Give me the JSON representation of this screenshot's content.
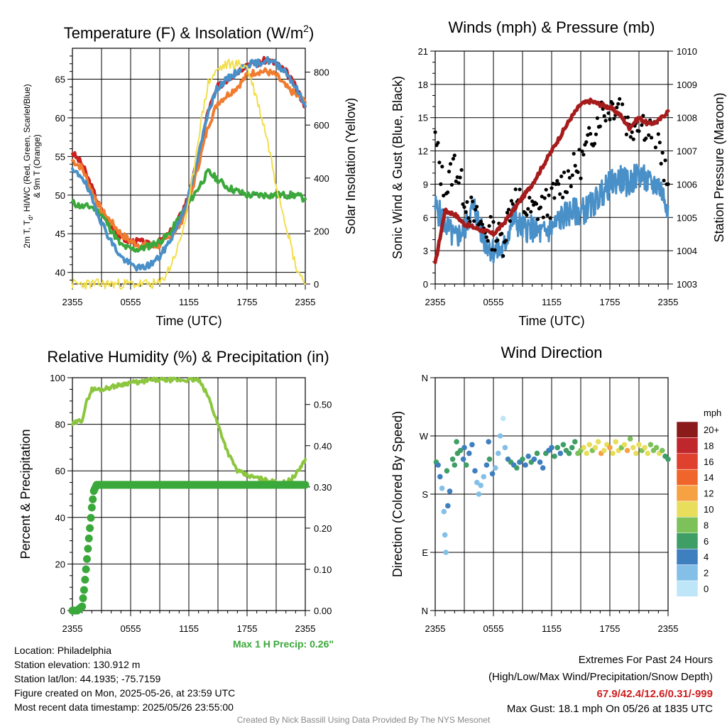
{
  "colors": {
    "red": "#cc1f1f",
    "orange": "#f07c30",
    "green": "#3aa83a",
    "blue": "#4a90c8",
    "yellow": "#f2de4a",
    "black": "#000000",
    "maroon": "#a61c1c",
    "lightgreen": "#8cc63f",
    "precip": "#3aa83a",
    "extremes": "#cc1f1f",
    "credit": "#888888"
  },
  "chart_data": [
    {
      "type": "line",
      "title": "Temperature (F) & Insolation (W/m²)",
      "title_main": "Temperature (F) & Insolation (W/m",
      "title_sup": "2",
      "title_end": ")",
      "xlabel": "Time (UTC)",
      "ylabel_line1": "2m T, T",
      "ylabel_sub": "d",
      "ylabel_line1_end": ", HI/WC (Red, Green, Scarlet/Blue)",
      "ylabel_line2": "& 9m T (Orange)",
      "y2label": "Solar Insolation (Yellow)",
      "xticks": [
        "2355",
        "0555",
        "1155",
        "1755",
        "2355"
      ],
      "xlim": [
        0,
        24
      ],
      "ylim": [
        38.5,
        69
      ],
      "yticks": [
        "40",
        "45",
        "50",
        "55",
        "60",
        "65"
      ],
      "y2lim": [
        0,
        890
      ],
      "y2ticks": [
        "0",
        "200",
        "400",
        "600",
        "800"
      ],
      "series": [
        {
          "name": "2m T",
          "color": "red",
          "x": [
            0,
            1,
            2,
            3,
            4,
            5,
            6,
            7,
            8,
            9,
            10,
            11,
            12,
            13,
            14,
            15,
            16,
            17,
            18,
            19,
            20,
            21,
            22,
            23,
            24
          ],
          "values": [
            55.5,
            54,
            51,
            48,
            46,
            44.5,
            44,
            44,
            43.5,
            44,
            45,
            47,
            50,
            55,
            61,
            64,
            65,
            66,
            67,
            67,
            67.5,
            67,
            66,
            64,
            61.5
          ]
        },
        {
          "name": "9m T",
          "color": "orange",
          "x": [
            0,
            1,
            2,
            3,
            4,
            5,
            6,
            7,
            8,
            9,
            10,
            11,
            12,
            13,
            14,
            15,
            16,
            17,
            18,
            19,
            20,
            21,
            22,
            23,
            24
          ],
          "values": [
            54.5,
            53.5,
            50.5,
            48,
            46.5,
            45,
            44,
            43.5,
            43.5,
            43.5,
            44.5,
            46,
            49,
            54,
            59,
            62,
            63,
            64,
            65.5,
            66,
            66,
            65.5,
            64,
            63,
            62
          ]
        },
        {
          "name": "Td",
          "color": "green",
          "x": [
            0,
            1,
            2,
            3,
            4,
            5,
            6,
            7,
            8,
            9,
            10,
            11,
            12,
            13,
            14,
            15,
            16,
            17,
            18,
            19,
            20,
            21,
            22,
            23,
            24
          ],
          "values": [
            49,
            48.5,
            48.5,
            47.5,
            45.5,
            43.5,
            43,
            43,
            43.5,
            44,
            45,
            47,
            49,
            51,
            53,
            52,
            51,
            50.5,
            50,
            50,
            50,
            50,
            50,
            50,
            49.5
          ]
        },
        {
          "name": "HI/WC",
          "color": "blue",
          "x": [
            0,
            1,
            2,
            3,
            4,
            5,
            6,
            7,
            8,
            9,
            10,
            11,
            12,
            13,
            14,
            15,
            16,
            17,
            18,
            19,
            20,
            21,
            22,
            23,
            24
          ],
          "values": [
            53,
            52.5,
            49.5,
            46.5,
            44,
            42,
            41,
            40.5,
            41,
            42,
            44,
            46.5,
            50,
            55,
            61,
            64,
            65,
            66,
            67,
            67,
            67.5,
            67,
            66,
            64,
            61.5
          ]
        },
        {
          "name": "Solar Insolation",
          "color": "yellow",
          "axis": "y2",
          "x": [
            0,
            0.5,
            1,
            2,
            3,
            4,
            5,
            6,
            7,
            8,
            9,
            10,
            11,
            12,
            13,
            14,
            15,
            16,
            17,
            18,
            19,
            20,
            21,
            22,
            23,
            24
          ],
          "values": [
            0,
            0,
            0,
            0,
            0,
            0,
            0,
            0,
            0,
            0,
            0,
            60,
            150,
            300,
            560,
            760,
            810,
            830,
            830,
            820,
            700,
            560,
            380,
            230,
            70,
            0
          ]
        }
      ]
    },
    {
      "type": "line",
      "title": "Winds (mph) & Pressure (mb)",
      "xlabel": "Time (UTC)",
      "ylabel": "Sonic Wind & Gust (Blue, Black)",
      "y2label": "Station Pressure (Maroon)",
      "xticks": [
        "2355",
        "0555",
        "1155",
        "1755",
        "2355"
      ],
      "xlim": [
        0,
        24
      ],
      "ylim": [
        0,
        21
      ],
      "yticks": [
        "0",
        "3",
        "6",
        "9",
        "12",
        "15",
        "18",
        "21"
      ],
      "y2lim": [
        1003,
        1010
      ],
      "y2ticks": [
        "1003",
        "1004",
        "1005",
        "1006",
        "1007",
        "1008",
        "1009",
        "1010"
      ],
      "series": [
        {
          "name": "Sonic Wind",
          "color": "blue",
          "x": [
            0,
            1,
            2,
            3,
            4,
            5,
            6,
            7,
            8,
            9,
            10,
            11,
            12,
            13,
            14,
            15,
            16,
            17,
            18,
            19,
            20,
            21,
            22,
            23,
            24
          ],
          "values": [
            7,
            5.5,
            4,
            5,
            7,
            4,
            3,
            3,
            6,
            5,
            5,
            4.5,
            5,
            6,
            6.5,
            6.5,
            7,
            8,
            9,
            9.5,
            9,
            10,
            9,
            9,
            7
          ]
        },
        {
          "name": "Gust",
          "color": "black",
          "x": [
            0,
            1,
            2,
            3,
            4,
            5,
            6,
            7,
            8,
            9,
            10,
            11,
            12,
            13,
            14,
            15,
            16,
            17,
            18,
            19,
            20,
            21,
            22,
            23,
            24
          ],
          "values": [
            13,
            8,
            11,
            8,
            6,
            5,
            4.5,
            4,
            8,
            7,
            6.5,
            7,
            7.5,
            9,
            10,
            11,
            13,
            15.5,
            16,
            16.5,
            14,
            15,
            14,
            13,
            9
          ]
        },
        {
          "name": "Station Pressure",
          "color": "maroon",
          "axis": "y2",
          "x": [
            0,
            1,
            2,
            3,
            4,
            5,
            6,
            7,
            8,
            9,
            10,
            11,
            12,
            13,
            14,
            15,
            16,
            17,
            18,
            19,
            20,
            21,
            22,
            23,
            24
          ],
          "values": [
            1003.6,
            1005.2,
            1005.1,
            1004.8,
            1004.7,
            1004.6,
            1004.5,
            1004.8,
            1005.2,
            1005.6,
            1006.0,
            1006.5,
            1007.0,
            1007.5,
            1008.0,
            1008.4,
            1008.5,
            1008.4,
            1008.3,
            1008.1,
            1007.7,
            1008.0,
            1007.8,
            1007.9,
            1008.2
          ]
        }
      ]
    },
    {
      "type": "line",
      "title": "Relative Humidity (%) & Precipitation (in)",
      "ylabel": "Percent & Precipitation",
      "xticks": [
        "2355",
        "0555",
        "1155",
        "1755",
        "2355"
      ],
      "xlim": [
        0,
        24
      ],
      "ylim": [
        0,
        100
      ],
      "yticks": [
        "0",
        "20",
        "40",
        "60",
        "80",
        "100"
      ],
      "y2lim": [
        0,
        0.565
      ],
      "y2ticks": [
        "0.00",
        "0.10",
        "0.20",
        "0.30",
        "0.40",
        "0.50"
      ],
      "annotation": "Max 1 H Precip: 0.26\"",
      "series": [
        {
          "name": "Relative Humidity",
          "color": "lightgreen",
          "x": [
            0,
            1,
            1.5,
            2,
            3,
            4,
            5,
            6,
            7,
            8,
            9,
            10,
            11,
            12,
            13,
            14,
            15,
            16,
            17,
            18,
            19,
            20,
            21,
            22,
            23,
            24
          ],
          "values": [
            80,
            82,
            90,
            95,
            95,
            96,
            97,
            98,
            98,
            99,
            99,
            99,
            99,
            99,
            99,
            92,
            80,
            68,
            60,
            58,
            57,
            56,
            55,
            55,
            58,
            65
          ]
        },
        {
          "name": "Precipitation",
          "color": "precip",
          "axis": "y2",
          "x": [
            0,
            0.5,
            1,
            1.2,
            1.4,
            1.6,
            1.8,
            2,
            2.2,
            2.5,
            3,
            6,
            12,
            18,
            24
          ],
          "values": [
            0,
            0,
            0.01,
            0.05,
            0.1,
            0.15,
            0.2,
            0.25,
            0.29,
            0.305,
            0.305,
            0.305,
            0.305,
            0.305,
            0.305
          ]
        }
      ]
    },
    {
      "type": "scatter",
      "title": "Wind Direction",
      "ylabel": "Direction (Colored By Speed)",
      "xticks": [
        "2355",
        "0555",
        "1155",
        "1755",
        "2355"
      ],
      "xlim": [
        0,
        24
      ],
      "ylim": [
        0,
        4
      ],
      "yticks": [
        "N",
        "E",
        "S",
        "W",
        "N"
      ],
      "colorbar": {
        "title": "mph",
        "labels": [
          "20+",
          "18",
          "16",
          "14",
          "12",
          "10",
          "8",
          "6",
          "4",
          "2",
          "0"
        ],
        "colors": [
          "#8b1a1a",
          "#c0272d",
          "#e0402e",
          "#f0652a",
          "#f6a142",
          "#e8de5c",
          "#7cc15a",
          "#3f9e66",
          "#3e7fbf",
          "#84bfe8",
          "#bfe6f8"
        ]
      },
      "points": [
        [
          0.1,
          2.55,
          6
        ],
        [
          0.3,
          2.5,
          5
        ],
        [
          0.5,
          2.3,
          4
        ],
        [
          0.7,
          2.1,
          3
        ],
        [
          0.9,
          1.7,
          3
        ],
        [
          1.0,
          1.3,
          2
        ],
        [
          1.1,
          1.0,
          2
        ],
        [
          1.3,
          1.8,
          4
        ],
        [
          1.5,
          2.05,
          4
        ],
        [
          1.2,
          2.4,
          6
        ],
        [
          1.8,
          2.6,
          7
        ],
        [
          2.0,
          2.5,
          7
        ],
        [
          2.3,
          2.7,
          7
        ],
        [
          2.6,
          2.75,
          6
        ],
        [
          2.9,
          2.6,
          5
        ],
        [
          3.2,
          2.5,
          6
        ],
        [
          3.5,
          2.7,
          5
        ],
        [
          3.8,
          2.85,
          4
        ],
        [
          4.1,
          2.4,
          4
        ],
        [
          4.3,
          2.2,
          3
        ],
        [
          4.5,
          2.0,
          2
        ],
        [
          4.7,
          2.15,
          2
        ],
        [
          5.0,
          2.3,
          3
        ],
        [
          5.3,
          2.5,
          4
        ],
        [
          5.6,
          2.6,
          6
        ],
        [
          5.9,
          2.35,
          4
        ],
        [
          6.2,
          2.45,
          3
        ],
        [
          6.5,
          2.7,
          2
        ],
        [
          6.7,
          3.0,
          2
        ],
        [
          7.0,
          3.3,
          1
        ],
        [
          7.2,
          2.8,
          2
        ],
        [
          7.5,
          2.6,
          5
        ],
        [
          7.8,
          2.55,
          6
        ],
        [
          8.1,
          2.5,
          4
        ],
        [
          8.4,
          2.45,
          6
        ],
        [
          8.7,
          2.55,
          5
        ],
        [
          9.0,
          2.6,
          6
        ],
        [
          9.3,
          2.5,
          4
        ],
        [
          9.6,
          2.65,
          5
        ],
        [
          9.9,
          2.55,
          6
        ],
        [
          10.2,
          2.6,
          4
        ],
        [
          10.5,
          2.7,
          6
        ],
        [
          10.8,
          2.55,
          5
        ],
        [
          11.1,
          2.45,
          4
        ],
        [
          11.4,
          2.7,
          6
        ],
        [
          11.7,
          2.75,
          4
        ],
        [
          12.0,
          2.8,
          5
        ],
        [
          12.3,
          2.65,
          6
        ],
        [
          12.6,
          2.8,
          6
        ],
        [
          12.9,
          2.7,
          4
        ],
        [
          13.2,
          2.85,
          6
        ],
        [
          13.5,
          2.75,
          7
        ],
        [
          13.8,
          2.7,
          6
        ],
        [
          14.1,
          2.8,
          7
        ],
        [
          14.4,
          2.9,
          6
        ],
        [
          14.7,
          2.7,
          8
        ],
        [
          15.0,
          2.75,
          9
        ],
        [
          15.3,
          2.8,
          10
        ],
        [
          15.6,
          2.7,
          11
        ],
        [
          15.9,
          2.85,
          10
        ],
        [
          16.2,
          2.75,
          9
        ],
        [
          16.5,
          2.8,
          11
        ],
        [
          16.8,
          2.9,
          10
        ],
        [
          17.1,
          2.7,
          12
        ],
        [
          17.4,
          2.75,
          11
        ],
        [
          17.7,
          2.85,
          10
        ],
        [
          18.0,
          2.8,
          12
        ],
        [
          18.3,
          2.7,
          11
        ],
        [
          18.6,
          2.9,
          10
        ],
        [
          18.9,
          2.75,
          11
        ],
        [
          19.2,
          2.8,
          9
        ],
        [
          19.5,
          2.85,
          10
        ],
        [
          19.8,
          2.75,
          12
        ],
        [
          20.1,
          2.95,
          8
        ],
        [
          20.4,
          2.8,
          11
        ],
        [
          20.7,
          2.7,
          10
        ],
        [
          21.0,
          2.85,
          11
        ],
        [
          21.3,
          2.75,
          9
        ],
        [
          21.6,
          2.8,
          10
        ],
        [
          21.9,
          2.7,
          11
        ],
        [
          22.2,
          2.85,
          9
        ],
        [
          22.5,
          2.75,
          8
        ],
        [
          22.8,
          2.8,
          9
        ],
        [
          23.1,
          2.7,
          10
        ],
        [
          23.4,
          2.75,
          8
        ],
        [
          23.7,
          2.65,
          7
        ],
        [
          24.0,
          2.6,
          6
        ],
        [
          2.2,
          2.9,
          7
        ],
        [
          3.0,
          2.8,
          5
        ],
        [
          5.5,
          2.9,
          4
        ]
      ]
    }
  ],
  "info": {
    "location": "Location: Philadelphia",
    "elevation": "Station elevation: 130.912 m",
    "latlon": "Station lat/lon: 44.1935; -75.7159",
    "created": "Figure created on Mon, 2025-05-26, at 23:59 UTC",
    "recent": "Most recent data timestamp: 2025/05/26 23:55:00"
  },
  "extremes": {
    "title": "Extremes For Past 24 Hours",
    "subtitle": "(High/Low/Max Wind/Precipitation/Snow Depth)",
    "values": "67.9/42.4/12.6/0.31/-999",
    "gust": "Max Gust: 18.1 mph On 05/26 at 1835 UTC"
  },
  "credit": "Created By Nick Bassill Using Data Provided By The NYS Mesonet"
}
